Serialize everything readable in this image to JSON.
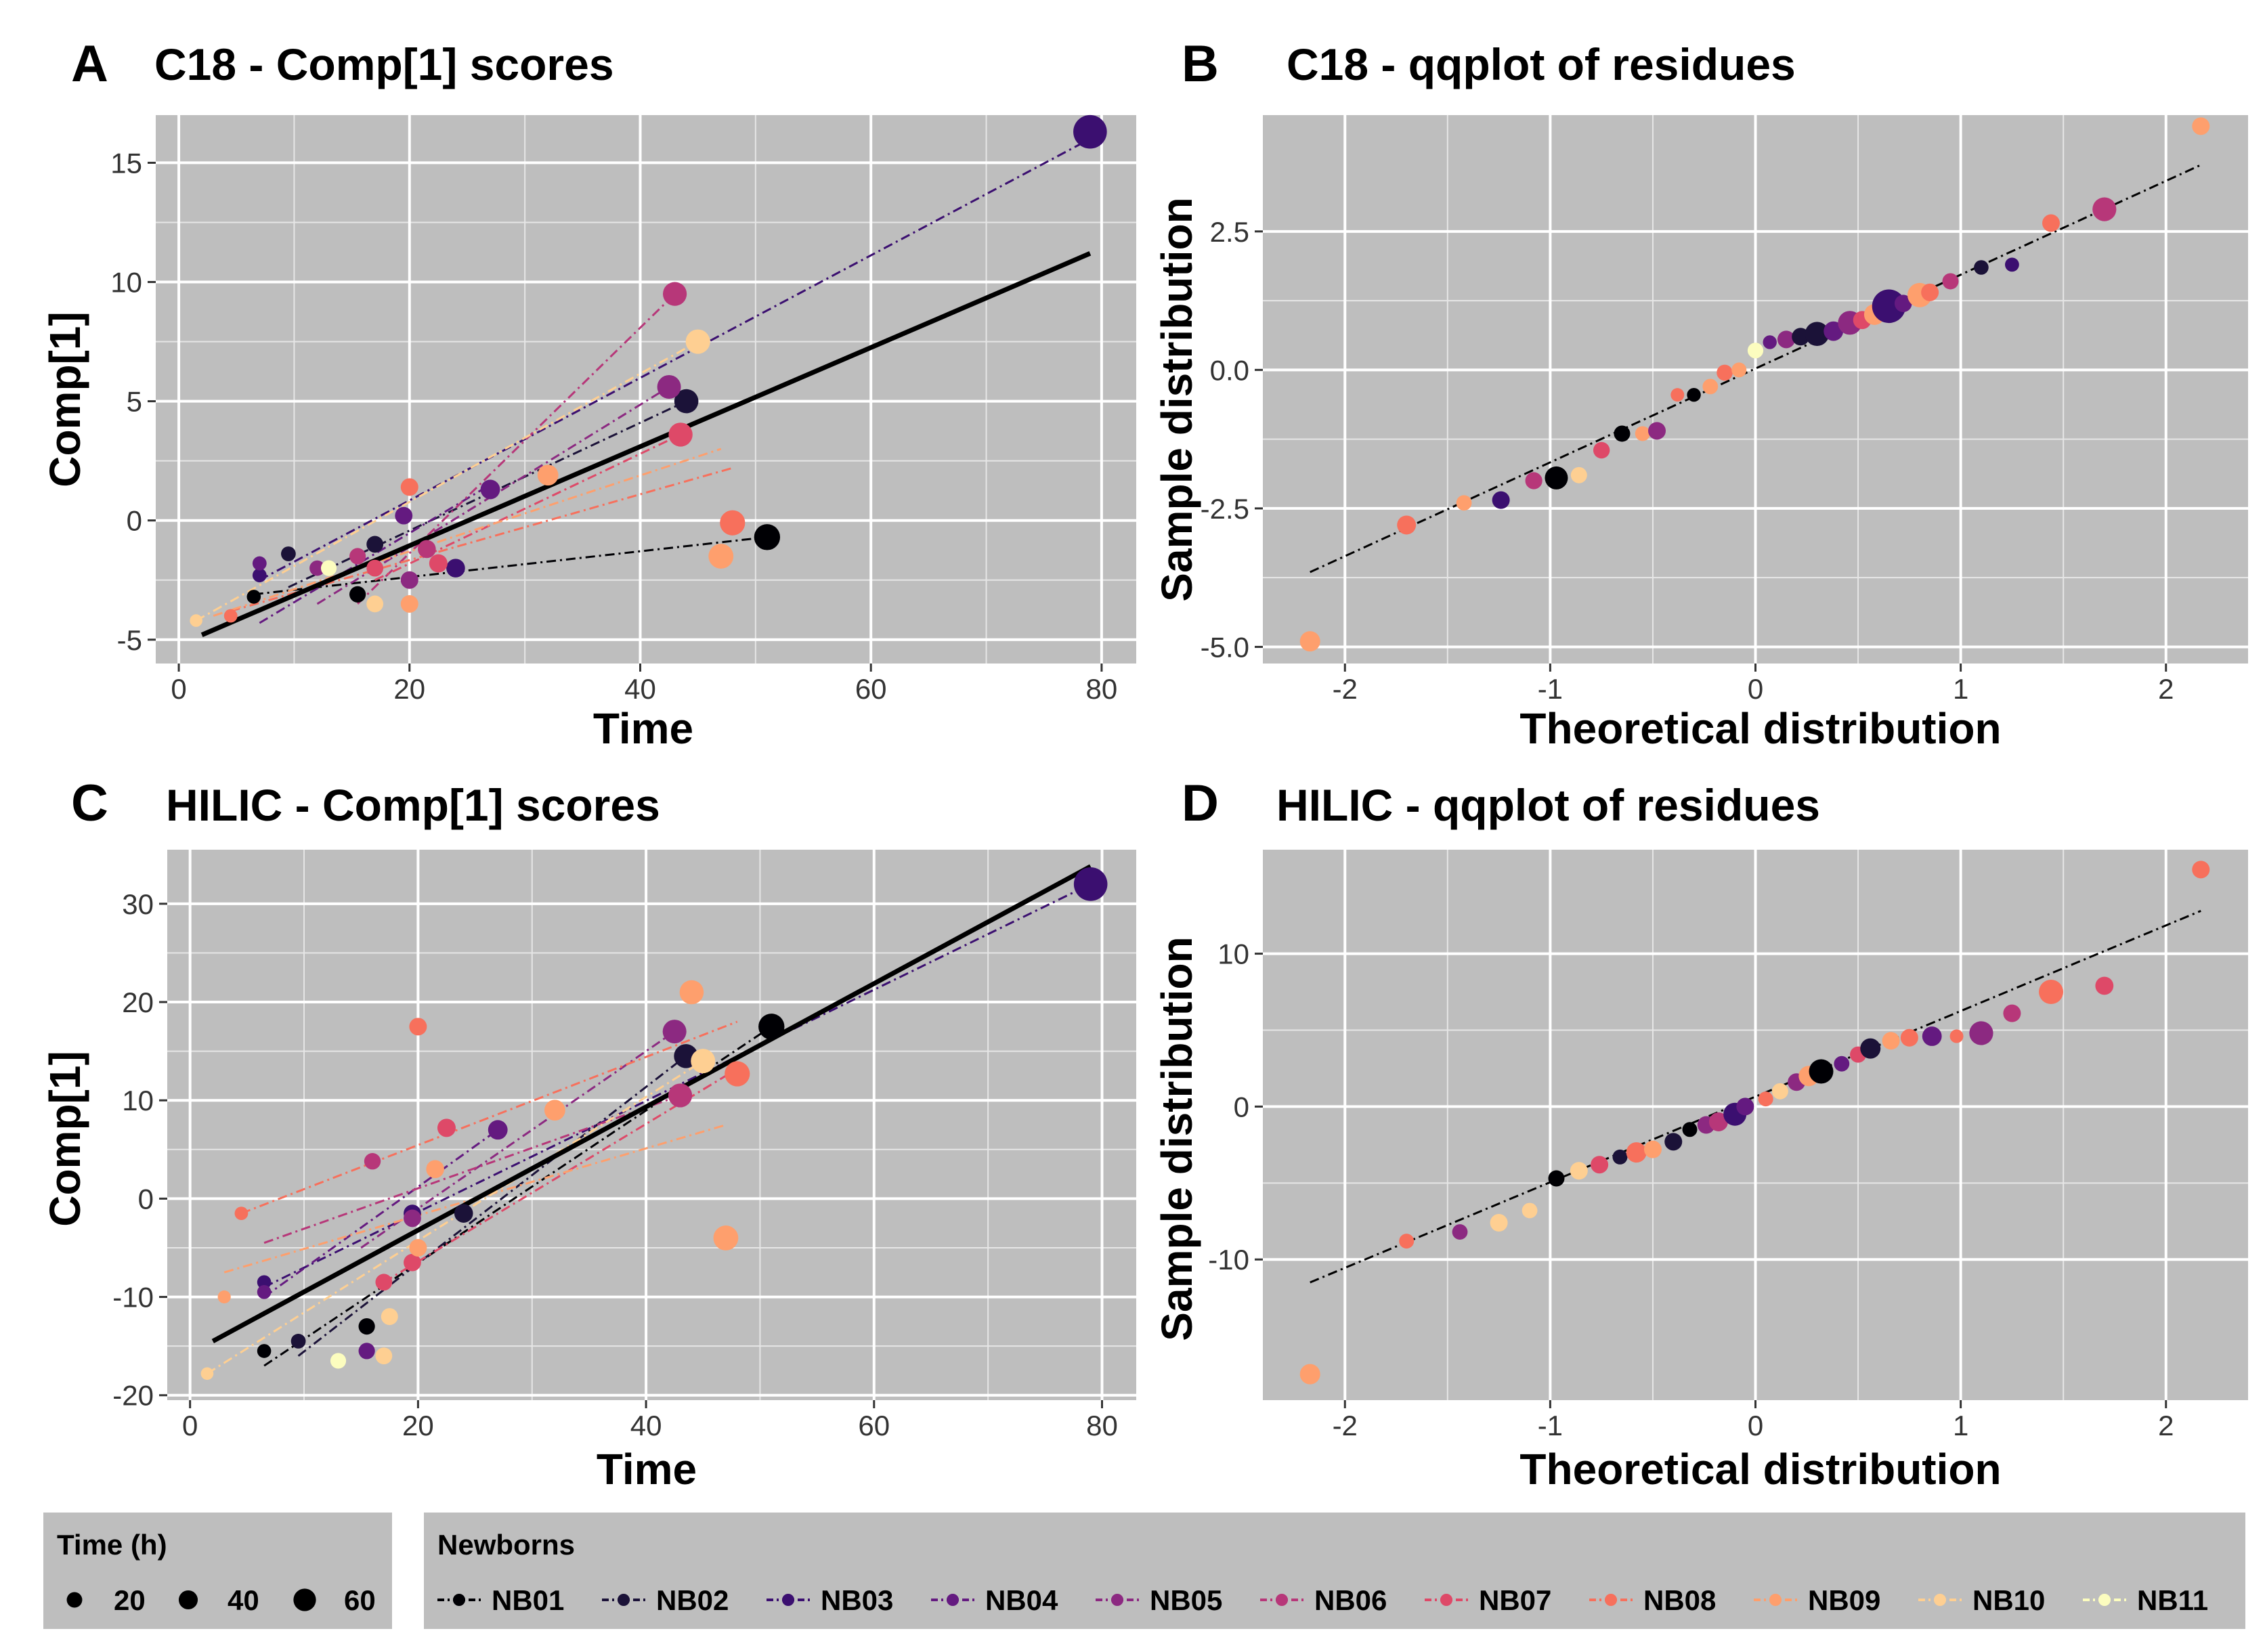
{
  "colors": {
    "panel_bg": "#bebebe",
    "grid": "#ffffff",
    "NB01": "#000004",
    "NB02": "#1b1238",
    "NB03": "#3b0f70",
    "NB04": "#641a80",
    "NB05": "#8c2981",
    "NB06": "#b73779",
    "NB07": "#de4968",
    "NB08": "#f7705c",
    "NB09": "#fe9f6d",
    "NB10": "#fecf92",
    "NB11": "#fcfdbf"
  },
  "legend": {
    "size_title": "Time (h)",
    "size_items": [
      {
        "label": "20",
        "t": 20
      },
      {
        "label": "40",
        "t": 40
      },
      {
        "label": "60",
        "t": 60
      }
    ],
    "color_title": "Newborns",
    "color_items": [
      "NB01",
      "NB02",
      "NB03",
      "NB04",
      "NB05",
      "NB06",
      "NB07",
      "NB08",
      "NB09",
      "NB10",
      "NB11"
    ]
  },
  "chart_data": [
    {
      "id": "A",
      "letter": "A",
      "type": "scatter",
      "title": "C18 - Comp[1] scores",
      "xlabel": "Time",
      "ylabel": "Comp[1]",
      "xlim": [
        -2,
        83
      ],
      "ylim": [
        -6,
        17
      ],
      "xticks": [
        0,
        20,
        40,
        60,
        80
      ],
      "yticks": [
        -5,
        0,
        5,
        10,
        15
      ],
      "fit_line": {
        "x": [
          2,
          79
        ],
        "y": [
          -4.8,
          11.2
        ]
      },
      "series": [
        {
          "name": "NB01",
          "points": [
            [
              6.5,
              -3.2
            ],
            [
              15.5,
              -3.1
            ],
            [
              51,
              -0.7
            ]
          ],
          "line": [
            [
              6.5,
              -3.1
            ],
            [
              51,
              -0.7
            ]
          ]
        },
        {
          "name": "NB02",
          "points": [
            [
              9.5,
              -1.4
            ],
            [
              17,
              -1.0
            ],
            [
              44,
              5.0
            ]
          ],
          "line": [
            [
              9.5,
              -2.8
            ],
            [
              44,
              5.0
            ]
          ]
        },
        {
          "name": "NB03",
          "points": [
            [
              7,
              -2.3
            ],
            [
              24,
              -2.0
            ],
            [
              79,
              16.3
            ]
          ],
          "line": [
            [
              7,
              -2.5
            ],
            [
              79,
              16.0
            ]
          ]
        },
        {
          "name": "NB04",
          "points": [
            [
              7,
              -1.8
            ],
            [
              19.5,
              0.2
            ],
            [
              27,
              1.3
            ]
          ],
          "line": [
            [
              7,
              -4.3
            ],
            [
              27,
              1.5
            ]
          ]
        },
        {
          "name": "NB05",
          "points": [
            [
              12,
              -2.0
            ],
            [
              20,
              -2.5
            ],
            [
              42.5,
              5.6
            ]
          ],
          "line": [
            [
              12,
              -3.5
            ],
            [
              42.5,
              5.6
            ]
          ]
        },
        {
          "name": "NB06",
          "points": [
            [
              15.5,
              -1.5
            ],
            [
              21.5,
              -1.2
            ],
            [
              43,
              9.5
            ]
          ],
          "line": [
            [
              15.5,
              -3.5
            ],
            [
              43,
              9.5
            ]
          ]
        },
        {
          "name": "NB07",
          "points": [
            [
              17,
              -2.0
            ],
            [
              22.5,
              -1.8
            ],
            [
              43.5,
              3.6
            ]
          ],
          "line": [
            [
              17,
              -2.5
            ],
            [
              43.5,
              3.6
            ]
          ]
        },
        {
          "name": "NB08",
          "points": [
            [
              4.5,
              -4.0
            ],
            [
              20,
              1.4
            ],
            [
              48,
              -0.1
            ]
          ],
          "line": [
            [
              4.5,
              -3.8
            ],
            [
              48,
              2.2
            ]
          ]
        },
        {
          "name": "NB09",
          "points": [
            [
              20,
              -3.5
            ],
            [
              32,
              1.9
            ],
            [
              47,
              -1.5
            ]
          ],
          "line": [
            [
              3,
              -4.0
            ],
            [
              47,
              3.0
            ]
          ]
        },
        {
          "name": "NB10",
          "points": [
            [
              1.5,
              -4.2
            ],
            [
              17,
              -3.5
            ],
            [
              45,
              7.5
            ]
          ],
          "line": [
            [
              1.5,
              -4.2
            ],
            [
              45,
              7.5
            ]
          ]
        },
        {
          "name": "NB11",
          "points": [
            [
              13,
              -2.0
            ]
          ],
          "line": null
        }
      ]
    },
    {
      "id": "B",
      "letter": "B",
      "type": "scatter",
      "title": "C18 - qqplot of residues",
      "xlabel": "Theoretical distribution",
      "ylabel": "Sample distribution",
      "xlim": [
        -2.4,
        2.4
      ],
      "ylim": [
        -5.3,
        4.6
      ],
      "xticks": [
        -2,
        -1,
        0,
        1,
        2
      ],
      "yticks": [
        -5.0,
        -2.5,
        0.0,
        2.5
      ],
      "ytick_labels": [
        "-5.0",
        "-2.5",
        "0.0",
        "2.5"
      ],
      "ref_line": {
        "x": [
          -2.17,
          2.17
        ],
        "y": [
          -3.65,
          3.7
        ]
      },
      "points": [
        {
          "x": -2.17,
          "y": -4.9,
          "s": "NB09",
          "t": 30
        },
        {
          "x": -1.7,
          "y": -2.8,
          "s": "NB08",
          "t": 25
        },
        {
          "x": -1.42,
          "y": -2.4,
          "s": "NB09",
          "t": 12
        },
        {
          "x": -1.24,
          "y": -2.35,
          "s": "NB03",
          "t": 20
        },
        {
          "x": -1.08,
          "y": -2.0,
          "s": "NB06",
          "t": 18
        },
        {
          "x": -0.97,
          "y": -1.95,
          "s": "NB01",
          "t": 40
        },
        {
          "x": -0.86,
          "y": -1.9,
          "s": "NB10",
          "t": 15
        },
        {
          "x": -0.75,
          "y": -1.45,
          "s": "NB07",
          "t": 16
        },
        {
          "x": -0.65,
          "y": -1.15,
          "s": "NB01",
          "t": 15
        },
        {
          "x": -0.55,
          "y": -1.15,
          "s": "NB09",
          "t": 10
        },
        {
          "x": -0.48,
          "y": -1.1,
          "s": "NB05",
          "t": 20
        },
        {
          "x": -0.38,
          "y": -0.45,
          "s": "NB08",
          "t": 5
        },
        {
          "x": -0.3,
          "y": -0.45,
          "s": "NB01",
          "t": 6
        },
        {
          "x": -0.22,
          "y": -0.3,
          "s": "NB09",
          "t": 12
        },
        {
          "x": -0.15,
          "y": -0.05,
          "s": "NB08",
          "t": 14
        },
        {
          "x": -0.08,
          "y": 0.0,
          "s": "NB09",
          "t": 10
        },
        {
          "x": 0.0,
          "y": 0.35,
          "s": "NB11",
          "t": 13
        },
        {
          "x": 0.07,
          "y": 0.5,
          "s": "NB04",
          "t": 6
        },
        {
          "x": 0.15,
          "y": 0.55,
          "s": "NB05",
          "t": 20
        },
        {
          "x": 0.22,
          "y": 0.6,
          "s": "NB02",
          "t": 20
        },
        {
          "x": 0.3,
          "y": 0.65,
          "s": "NB02",
          "t": 44
        },
        {
          "x": 0.38,
          "y": 0.7,
          "s": "NB04",
          "t": 27
        },
        {
          "x": 0.46,
          "y": 0.85,
          "s": "NB05",
          "t": 43
        },
        {
          "x": 0.52,
          "y": 0.9,
          "s": "NB07",
          "t": 22
        },
        {
          "x": 0.58,
          "y": 1.0,
          "s": "NB09",
          "t": 32
        },
        {
          "x": 0.65,
          "y": 1.15,
          "s": "NB03",
          "t": 79
        },
        {
          "x": 0.72,
          "y": 1.2,
          "s": "NB04",
          "t": 19
        },
        {
          "x": 0.8,
          "y": 1.35,
          "s": "NB09",
          "t": 45
        },
        {
          "x": 0.85,
          "y": 1.4,
          "s": "NB08",
          "t": 20
        },
        {
          "x": 0.95,
          "y": 1.6,
          "s": "NB06",
          "t": 15
        },
        {
          "x": 1.1,
          "y": 1.85,
          "s": "NB02",
          "t": 9
        },
        {
          "x": 1.25,
          "y": 1.9,
          "s": "NB03",
          "t": 7
        },
        {
          "x": 1.44,
          "y": 2.65,
          "s": "NB08",
          "t": 20
        },
        {
          "x": 1.7,
          "y": 2.9,
          "s": "NB06",
          "t": 43
        },
        {
          "x": 2.17,
          "y": 4.4,
          "s": "NB09",
          "t": 20
        }
      ]
    },
    {
      "id": "C",
      "letter": "C",
      "type": "scatter",
      "title": "HILIC - Comp[1] scores",
      "xlabel": "Time",
      "ylabel": "Comp[1]",
      "xlim": [
        -2,
        83
      ],
      "ylim": [
        -20.5,
        35.5
      ],
      "xticks": [
        0,
        20,
        40,
        60,
        80
      ],
      "yticks": [
        -20,
        -10,
        0,
        10,
        20,
        30
      ],
      "fit_line": {
        "x": [
          2,
          79
        ],
        "y": [
          -14.5,
          33.8
        ]
      },
      "series": [
        {
          "name": "NB01",
          "points": [
            [
              6.5,
              -15.5
            ],
            [
              15.5,
              -13.0
            ],
            [
              51,
              17.5
            ]
          ],
          "line": [
            [
              6.5,
              -17.0
            ],
            [
              51,
              17.5
            ]
          ]
        },
        {
          "name": "NB02",
          "points": [
            [
              9.5,
              -14.5
            ],
            [
              24,
              -1.5
            ],
            [
              43.5,
              14.5
            ]
          ],
          "line": [
            [
              9.5,
              -16.0
            ],
            [
              43.5,
              14.5
            ]
          ]
        },
        {
          "name": "NB03",
          "points": [
            [
              6.5,
              -8.5
            ],
            [
              19.5,
              -1.5
            ],
            [
              79,
              32.0
            ]
          ],
          "line": [
            [
              6.5,
              -9.0
            ],
            [
              79,
              32.0
            ]
          ]
        },
        {
          "name": "NB04",
          "points": [
            [
              6.5,
              -9.5
            ],
            [
              15.5,
              -15.5
            ],
            [
              27,
              7.0
            ]
          ],
          "line": [
            [
              6.5,
              -10.0
            ],
            [
              27,
              7.0
            ]
          ]
        },
        {
          "name": "NB05",
          "points": [
            [
              19.5,
              -2.0
            ],
            [
              42.5,
              17.0
            ]
          ],
          "line": [
            [
              15,
              -5.0
            ],
            [
              42.5,
              17.0
            ]
          ]
        },
        {
          "name": "NB06",
          "points": [
            [
              16,
              3.8
            ],
            [
              43,
              10.5
            ]
          ],
          "line": [
            [
              6.5,
              -4.5
            ],
            [
              43,
              10.5
            ]
          ]
        },
        {
          "name": "NB07",
          "points": [
            [
              17,
              -8.5
            ],
            [
              19.5,
              -6.5
            ],
            [
              22.5,
              7.2
            ]
          ],
          "line": [
            [
              17,
              -8.5
            ],
            [
              47,
              12.5
            ]
          ]
        },
        {
          "name": "NB08",
          "points": [
            [
              4.5,
              -1.5
            ],
            [
              20,
              17.5
            ],
            [
              48,
              12.7
            ]
          ],
          "line": [
            [
              4.5,
              -1.5
            ],
            [
              48,
              18.0
            ]
          ]
        },
        {
          "name": "NB09",
          "points": [
            [
              3,
              -10.0
            ],
            [
              20,
              -5.0
            ],
            [
              44,
              21.0
            ],
            [
              47,
              -4.0
            ],
            [
              32,
              9.0
            ],
            [
              21.5,
              3.0
            ]
          ],
          "line": [
            [
              3,
              -7.5
            ],
            [
              47,
              7.5
            ]
          ]
        },
        {
          "name": "NB10",
          "points": [
            [
              1.5,
              -17.8
            ],
            [
              17,
              -16.0
            ],
            [
              17.5,
              -12.0
            ],
            [
              45,
              14.0
            ]
          ],
          "line": [
            [
              1.5,
              -17.8
            ],
            [
              45,
              14.0
            ]
          ]
        },
        {
          "name": "NB11",
          "points": [
            [
              13,
              -16.5
            ]
          ],
          "line": null
        }
      ]
    },
    {
      "id": "D",
      "letter": "D",
      "type": "scatter",
      "title": "HILIC - qqplot of residues",
      "xlabel": "Theoretical distribution",
      "ylabel": "Sample distribution",
      "xlim": [
        -2.4,
        2.4
      ],
      "ylim": [
        -19.2,
        16.8
      ],
      "xticks": [
        -2,
        -1,
        0,
        1,
        2
      ],
      "yticks": [
        -10,
        0,
        10
      ],
      "ref_line": {
        "x": [
          -2.17,
          2.17
        ],
        "y": [
          -11.5,
          12.8
        ]
      },
      "points": [
        {
          "x": -2.17,
          "y": -17.5,
          "s": "NB09",
          "t": 30
        },
        {
          "x": -1.7,
          "y": -8.8,
          "s": "NB08",
          "t": 10
        },
        {
          "x": -1.44,
          "y": -8.2,
          "s": "NB05",
          "t": 12
        },
        {
          "x": -1.25,
          "y": -7.6,
          "s": "NB10",
          "t": 20
        },
        {
          "x": -1.1,
          "y": -6.8,
          "s": "NB10",
          "t": 12
        },
        {
          "x": -0.97,
          "y": -4.7,
          "s": "NB01",
          "t": 15
        },
        {
          "x": -0.86,
          "y": -4.2,
          "s": "NB10",
          "t": 20
        },
        {
          "x": -0.76,
          "y": -3.8,
          "s": "NB07",
          "t": 20
        },
        {
          "x": -0.66,
          "y": -3.3,
          "s": "NB02",
          "t": 10
        },
        {
          "x": -0.58,
          "y": -3.0,
          "s": "NB08",
          "t": 30
        },
        {
          "x": -0.5,
          "y": -2.8,
          "s": "NB09",
          "t": 20
        },
        {
          "x": -0.4,
          "y": -2.3,
          "s": "NB02",
          "t": 20
        },
        {
          "x": -0.32,
          "y": -1.5,
          "s": "NB01",
          "t": 10
        },
        {
          "x": -0.24,
          "y": -1.2,
          "s": "NB05",
          "t": 20
        },
        {
          "x": -0.18,
          "y": -1.0,
          "s": "NB06",
          "t": 25
        },
        {
          "x": -0.1,
          "y": -0.5,
          "s": "NB03",
          "t": 40
        },
        {
          "x": -0.05,
          "y": 0.0,
          "s": "NB04",
          "t": 20
        },
        {
          "x": 0.05,
          "y": 0.5,
          "s": "NB08",
          "t": 10
        },
        {
          "x": 0.12,
          "y": 1.0,
          "s": "NB10",
          "t": 15
        },
        {
          "x": 0.2,
          "y": 1.6,
          "s": "NB05",
          "t": 20
        },
        {
          "x": 0.26,
          "y": 2.0,
          "s": "NB09",
          "t": 30
        },
        {
          "x": 0.32,
          "y": 2.3,
          "s": "NB01",
          "t": 45
        },
        {
          "x": 0.42,
          "y": 2.8,
          "s": "NB04",
          "t": 12
        },
        {
          "x": 0.5,
          "y": 3.4,
          "s": "NB07",
          "t": 15
        },
        {
          "x": 0.56,
          "y": 3.8,
          "s": "NB02",
          "t": 30
        },
        {
          "x": 0.66,
          "y": 4.3,
          "s": "NB09",
          "t": 20
        },
        {
          "x": 0.75,
          "y": 4.5,
          "s": "NB08",
          "t": 20
        },
        {
          "x": 0.86,
          "y": 4.6,
          "s": "NB04",
          "t": 27
        },
        {
          "x": 0.98,
          "y": 4.6,
          "s": "NB08",
          "t": 5
        },
        {
          "x": 1.1,
          "y": 4.8,
          "s": "NB05",
          "t": 43
        },
        {
          "x": 1.25,
          "y": 6.1,
          "s": "NB06",
          "t": 20
        },
        {
          "x": 1.44,
          "y": 7.5,
          "s": "NB08",
          "t": 45
        },
        {
          "x": 1.7,
          "y": 7.9,
          "s": "NB07",
          "t": 22
        },
        {
          "x": 2.17,
          "y": 15.5,
          "s": "NB08",
          "t": 20
        }
      ]
    }
  ]
}
